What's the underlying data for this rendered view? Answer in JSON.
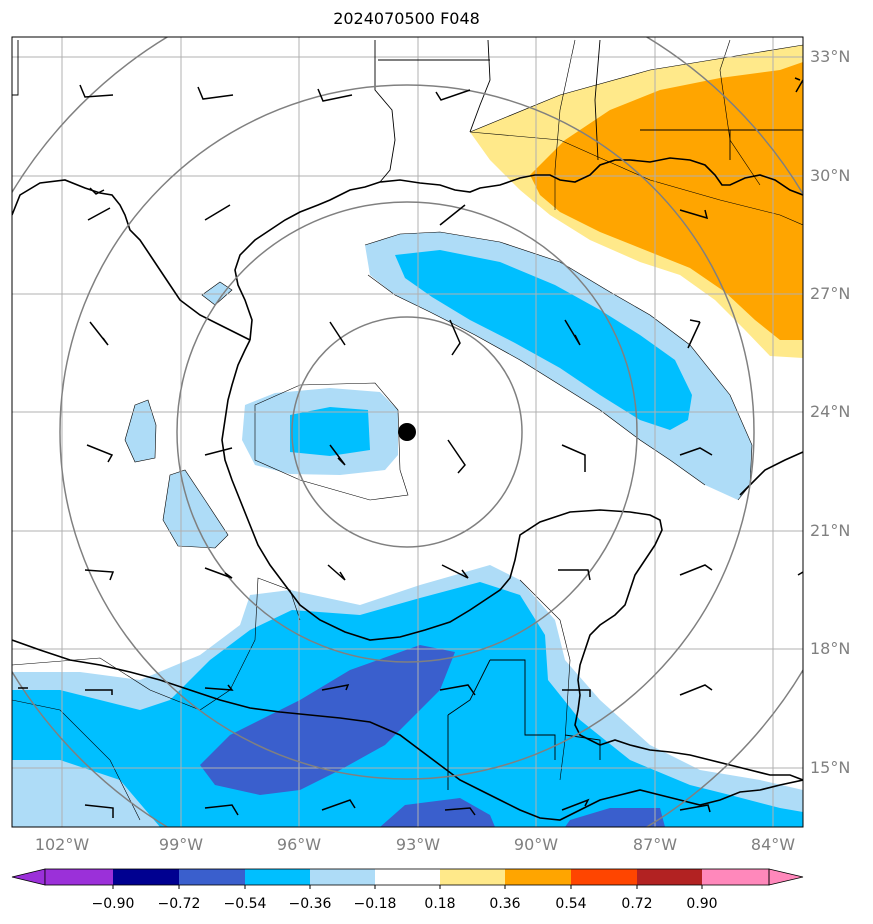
{
  "title": "2024070500 F048",
  "map": {
    "lon_labels": [
      "102°W",
      "99°W",
      "96°W",
      "93°W",
      "90°W",
      "87°W",
      "84°W"
    ],
    "lat_labels": [
      "33°N",
      "30°N",
      "27°N",
      "24°N",
      "21°N",
      "18°N",
      "15°N"
    ],
    "center_marker": {
      "lon": -93.4,
      "lat": 23.5
    },
    "colors": {
      "grid": "#b0b0b0",
      "coast": "#000000",
      "range_rings": "#808080",
      "neg_light": "#aedcf7",
      "neg_mid": "#00bfff",
      "neg_dark": "#3a5fcd",
      "pos_light": "#ffe98a",
      "pos_mid": "#ffa500"
    }
  },
  "colorbar": {
    "tick_labels": [
      "−0.90",
      "−0.72",
      "−0.54",
      "−0.36",
      "−0.18",
      "0.18",
      "0.36",
      "0.54",
      "0.72",
      "0.90"
    ],
    "colors": [
      "#9b30d9",
      "#000090",
      "#3a5fcd",
      "#00bfff",
      "#aedcf7",
      "#ffffff",
      "#ffe98a",
      "#ffa500",
      "#ff4500",
      "#b22222",
      "#ff88bb"
    ]
  }
}
